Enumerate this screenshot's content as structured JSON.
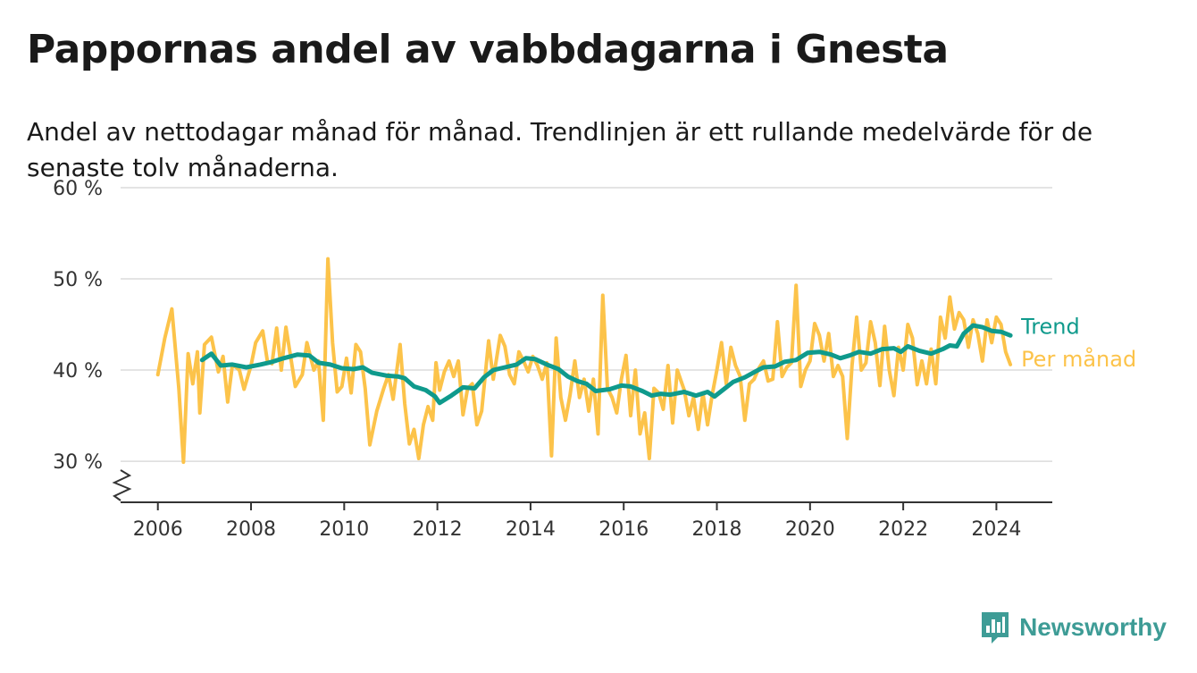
{
  "title": "Pappornas andel av vabbdagarna i Gnesta",
  "subtitle": "Andel av nettodagar månad för månad. Trendlinjen är ett rullande medelvärde för de senaste tolv månaderna.",
  "brand": {
    "name": "Newsworthy",
    "icon": "newsworthy-logo-icon",
    "color": "#3e9c96"
  },
  "chart_data": {
    "type": "line",
    "xlim": [
      2005.2,
      2025.2
    ],
    "ylim": [
      25.5,
      60
    ],
    "y_ticks": [
      30,
      40,
      50,
      60
    ],
    "y_tick_labels": [
      "30 %",
      "40 %",
      "50 %",
      "60 %"
    ],
    "x_ticks": [
      2006,
      2008,
      2010,
      2012,
      2014,
      2016,
      2018,
      2020,
      2022,
      2024
    ],
    "x_tick_labels": [
      "2006",
      "2008",
      "2010",
      "2012",
      "2014",
      "2016",
      "2018",
      "2020",
      "2022",
      "2024"
    ],
    "grid": true,
    "axis_break": true,
    "legend": "direct labels at line ends",
    "series": [
      {
        "name": "Trend",
        "color": "#0f9a8c",
        "points": [
          [
            2006.95,
            41.1
          ],
          [
            2007.15,
            41.8
          ],
          [
            2007.35,
            40.5
          ],
          [
            2007.6,
            40.6
          ],
          [
            2007.9,
            40.3
          ],
          [
            2008.2,
            40.6
          ],
          [
            2008.45,
            40.9
          ],
          [
            2008.7,
            41.3
          ],
          [
            2009.0,
            41.7
          ],
          [
            2009.25,
            41.6
          ],
          [
            2009.45,
            40.8
          ],
          [
            2009.7,
            40.6
          ],
          [
            2009.95,
            40.2
          ],
          [
            2010.2,
            40.1
          ],
          [
            2010.4,
            40.3
          ],
          [
            2010.6,
            39.7
          ],
          [
            2010.9,
            39.4
          ],
          [
            2011.15,
            39.3
          ],
          [
            2011.3,
            39.1
          ],
          [
            2011.5,
            38.2
          ],
          [
            2011.75,
            37.8
          ],
          [
            2011.95,
            37.1
          ],
          [
            2012.05,
            36.4
          ],
          [
            2012.3,
            37.2
          ],
          [
            2012.55,
            38.1
          ],
          [
            2012.8,
            38.0
          ],
          [
            2013.0,
            39.2
          ],
          [
            2013.2,
            40.0
          ],
          [
            2013.45,
            40.3
          ],
          [
            2013.7,
            40.6
          ],
          [
            2013.9,
            41.3
          ],
          [
            2014.1,
            41.2
          ],
          [
            2014.35,
            40.6
          ],
          [
            2014.6,
            40.1
          ],
          [
            2014.8,
            39.3
          ],
          [
            2015.0,
            38.8
          ],
          [
            2015.2,
            38.5
          ],
          [
            2015.4,
            37.7
          ],
          [
            2015.7,
            37.9
          ],
          [
            2015.95,
            38.3
          ],
          [
            2016.15,
            38.2
          ],
          [
            2016.4,
            37.7
          ],
          [
            2016.6,
            37.2
          ],
          [
            2016.8,
            37.4
          ],
          [
            2017.0,
            37.3
          ],
          [
            2017.3,
            37.6
          ],
          [
            2017.55,
            37.2
          ],
          [
            2017.8,
            37.6
          ],
          [
            2017.95,
            37.1
          ],
          [
            2018.15,
            37.9
          ],
          [
            2018.35,
            38.7
          ],
          [
            2018.6,
            39.2
          ],
          [
            2018.85,
            39.9
          ],
          [
            2019.0,
            40.3
          ],
          [
            2019.25,
            40.4
          ],
          [
            2019.45,
            40.9
          ],
          [
            2019.7,
            41.1
          ],
          [
            2019.95,
            41.9
          ],
          [
            2020.2,
            42.0
          ],
          [
            2020.45,
            41.7
          ],
          [
            2020.65,
            41.3
          ],
          [
            2020.85,
            41.6
          ],
          [
            2021.05,
            42.0
          ],
          [
            2021.3,
            41.8
          ],
          [
            2021.55,
            42.3
          ],
          [
            2021.8,
            42.4
          ],
          [
            2021.95,
            42.0
          ],
          [
            2022.1,
            42.6
          ],
          [
            2022.35,
            42.1
          ],
          [
            2022.6,
            41.8
          ],
          [
            2022.85,
            42.3
          ],
          [
            2023.0,
            42.7
          ],
          [
            2023.15,
            42.6
          ],
          [
            2023.3,
            44.0
          ],
          [
            2023.5,
            44.9
          ],
          [
            2023.7,
            44.7
          ],
          [
            2023.9,
            44.3
          ],
          [
            2024.1,
            44.2
          ],
          [
            2024.3,
            43.8
          ]
        ]
      },
      {
        "name": "Per månad",
        "color": "#fcc34a",
        "points": [
          [
            2006.0,
            39.5
          ],
          [
            2006.15,
            43.5
          ],
          [
            2006.3,
            46.7
          ],
          [
            2006.45,
            38.0
          ],
          [
            2006.55,
            29.9
          ],
          [
            2006.65,
            41.8
          ],
          [
            2006.75,
            38.5
          ],
          [
            2006.85,
            42.0
          ],
          [
            2006.9,
            35.3
          ],
          [
            2007.0,
            42.8
          ],
          [
            2007.15,
            43.6
          ],
          [
            2007.3,
            39.8
          ],
          [
            2007.4,
            41.5
          ],
          [
            2007.5,
            36.5
          ],
          [
            2007.6,
            40.6
          ],
          [
            2007.75,
            40.0
          ],
          [
            2007.85,
            37.9
          ],
          [
            2008.0,
            40.5
          ],
          [
            2008.1,
            43.0
          ],
          [
            2008.25,
            44.3
          ],
          [
            2008.35,
            41.0
          ],
          [
            2008.45,
            40.7
          ],
          [
            2008.55,
            44.6
          ],
          [
            2008.65,
            40.0
          ],
          [
            2008.75,
            44.7
          ],
          [
            2008.85,
            41.5
          ],
          [
            2008.95,
            38.2
          ],
          [
            2009.1,
            39.5
          ],
          [
            2009.2,
            43.0
          ],
          [
            2009.35,
            40.0
          ],
          [
            2009.45,
            41.0
          ],
          [
            2009.55,
            34.5
          ],
          [
            2009.65,
            52.2
          ],
          [
            2009.75,
            43.0
          ],
          [
            2009.85,
            37.6
          ],
          [
            2009.95,
            38.2
          ],
          [
            2010.05,
            41.3
          ],
          [
            2010.15,
            37.5
          ],
          [
            2010.25,
            42.8
          ],
          [
            2010.35,
            42.0
          ],
          [
            2010.45,
            38.0
          ],
          [
            2010.55,
            31.8
          ],
          [
            2010.7,
            35.5
          ],
          [
            2010.85,
            38.0
          ],
          [
            2010.95,
            39.5
          ],
          [
            2011.05,
            36.8
          ],
          [
            2011.2,
            42.8
          ],
          [
            2011.3,
            36.3
          ],
          [
            2011.4,
            31.9
          ],
          [
            2011.5,
            33.5
          ],
          [
            2011.6,
            30.3
          ],
          [
            2011.7,
            34.0
          ],
          [
            2011.8,
            36.0
          ],
          [
            2011.9,
            34.5
          ],
          [
            2011.97,
            40.8
          ],
          [
            2012.05,
            37.8
          ],
          [
            2012.15,
            39.8
          ],
          [
            2012.25,
            41.0
          ],
          [
            2012.35,
            39.3
          ],
          [
            2012.45,
            41.0
          ],
          [
            2012.55,
            35.1
          ],
          [
            2012.65,
            38.0
          ],
          [
            2012.75,
            38.5
          ],
          [
            2012.85,
            34.0
          ],
          [
            2012.95,
            35.5
          ],
          [
            2013.1,
            43.2
          ],
          [
            2013.2,
            39.0
          ],
          [
            2013.35,
            43.8
          ],
          [
            2013.45,
            42.6
          ],
          [
            2013.55,
            39.5
          ],
          [
            2013.65,
            38.5
          ],
          [
            2013.75,
            42.0
          ],
          [
            2013.85,
            41.0
          ],
          [
            2013.95,
            39.8
          ],
          [
            2014.05,
            41.5
          ],
          [
            2014.15,
            40.5
          ],
          [
            2014.25,
            39.0
          ],
          [
            2014.35,
            40.8
          ],
          [
            2014.45,
            30.6
          ],
          [
            2014.55,
            43.5
          ],
          [
            2014.65,
            37.0
          ],
          [
            2014.75,
            34.5
          ],
          [
            2014.85,
            37.3
          ],
          [
            2014.95,
            41.0
          ],
          [
            2015.05,
            37.0
          ],
          [
            2015.15,
            39.0
          ],
          [
            2015.25,
            35.5
          ],
          [
            2015.35,
            39.0
          ],
          [
            2015.45,
            33.0
          ],
          [
            2015.55,
            48.2
          ],
          [
            2015.65,
            38.0
          ],
          [
            2015.75,
            37.0
          ],
          [
            2015.85,
            35.3
          ],
          [
            2015.95,
            39.0
          ],
          [
            2016.05,
            41.6
          ],
          [
            2016.15,
            35.0
          ],
          [
            2016.25,
            40.0
          ],
          [
            2016.35,
            33.0
          ],
          [
            2016.45,
            35.3
          ],
          [
            2016.55,
            30.3
          ],
          [
            2016.65,
            38.0
          ],
          [
            2016.75,
            37.5
          ],
          [
            2016.85,
            35.7
          ],
          [
            2016.95,
            40.5
          ],
          [
            2017.05,
            34.2
          ],
          [
            2017.15,
            40.0
          ],
          [
            2017.3,
            37.8
          ],
          [
            2017.4,
            35.0
          ],
          [
            2017.5,
            37.0
          ],
          [
            2017.6,
            33.5
          ],
          [
            2017.7,
            37.5
          ],
          [
            2017.8,
            34.0
          ],
          [
            2017.9,
            37.3
          ],
          [
            2018.0,
            40.0
          ],
          [
            2018.1,
            43.0
          ],
          [
            2018.2,
            38.5
          ],
          [
            2018.3,
            42.5
          ],
          [
            2018.4,
            40.5
          ],
          [
            2018.5,
            39.3
          ],
          [
            2018.6,
            34.5
          ],
          [
            2018.7,
            38.5
          ],
          [
            2018.8,
            39.0
          ],
          [
            2018.9,
            40.2
          ],
          [
            2019.0,
            41.0
          ],
          [
            2019.1,
            38.8
          ],
          [
            2019.2,
            39.0
          ],
          [
            2019.3,
            45.3
          ],
          [
            2019.4,
            39.3
          ],
          [
            2019.5,
            40.3
          ],
          [
            2019.6,
            40.8
          ],
          [
            2019.7,
            49.3
          ],
          [
            2019.8,
            38.2
          ],
          [
            2019.9,
            40.0
          ],
          [
            2020.0,
            41.0
          ],
          [
            2020.1,
            45.1
          ],
          [
            2020.2,
            43.8
          ],
          [
            2020.3,
            41.0
          ],
          [
            2020.4,
            44.0
          ],
          [
            2020.5,
            39.3
          ],
          [
            2020.6,
            40.5
          ],
          [
            2020.7,
            39.3
          ],
          [
            2020.8,
            32.5
          ],
          [
            2020.9,
            40.5
          ],
          [
            2021.0,
            45.8
          ],
          [
            2021.1,
            40.0
          ],
          [
            2021.2,
            40.8
          ],
          [
            2021.3,
            45.3
          ],
          [
            2021.4,
            43.0
          ],
          [
            2021.5,
            38.3
          ],
          [
            2021.6,
            44.8
          ],
          [
            2021.7,
            40.0
          ],
          [
            2021.8,
            37.2
          ],
          [
            2021.9,
            42.5
          ],
          [
            2022.0,
            40.0
          ],
          [
            2022.1,
            45.0
          ],
          [
            2022.2,
            43.5
          ],
          [
            2022.3,
            38.4
          ],
          [
            2022.4,
            41.0
          ],
          [
            2022.5,
            38.5
          ],
          [
            2022.6,
            42.3
          ],
          [
            2022.7,
            38.5
          ],
          [
            2022.8,
            45.8
          ],
          [
            2022.9,
            43.5
          ],
          [
            2023.0,
            48.0
          ],
          [
            2023.1,
            44.5
          ],
          [
            2023.2,
            46.3
          ],
          [
            2023.3,
            45.5
          ],
          [
            2023.4,
            42.5
          ],
          [
            2023.5,
            45.5
          ],
          [
            2023.6,
            44.0
          ],
          [
            2023.7,
            41.0
          ],
          [
            2023.8,
            45.5
          ],
          [
            2023.9,
            43.0
          ],
          [
            2024.0,
            45.8
          ],
          [
            2024.1,
            45.0
          ],
          [
            2024.2,
            42.0
          ],
          [
            2024.3,
            40.6
          ]
        ]
      }
    ]
  }
}
